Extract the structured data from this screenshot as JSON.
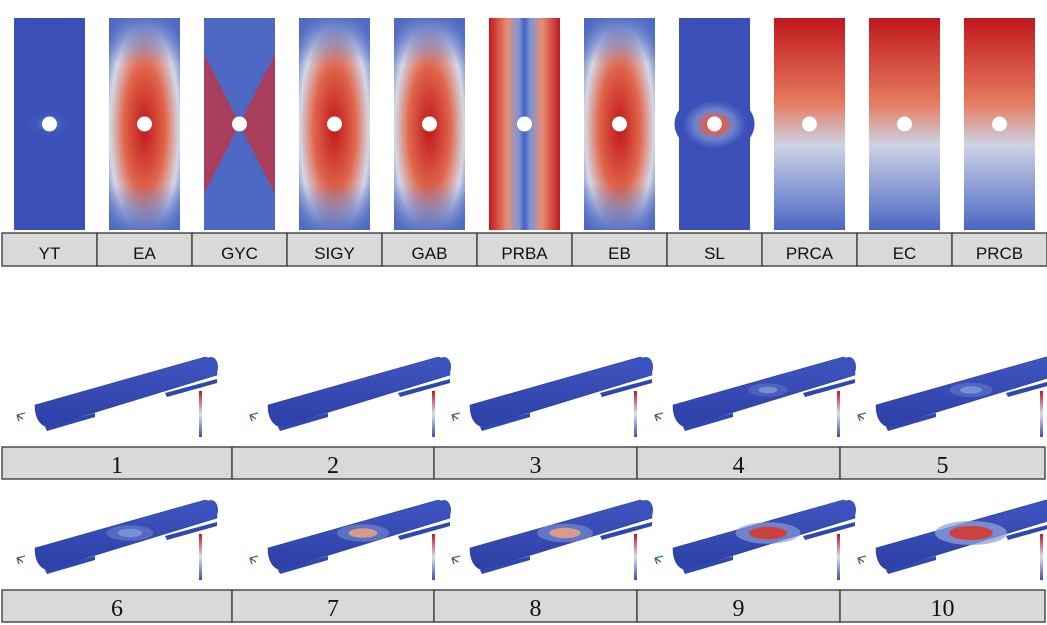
{
  "colors": {
    "low": "#3a4fb8",
    "mid": "#d8dce8",
    "high": "#c1171c",
    "cell_fill": "#d9d9d9",
    "cell_border": "#404040",
    "hole": "#ffffff"
  },
  "plates": [
    {
      "label": "YT",
      "pattern": "uniform-low"
    },
    {
      "label": "EA",
      "pattern": "x-high-center"
    },
    {
      "label": "GYC",
      "pattern": "x-high-center-low-edges"
    },
    {
      "label": "SIGY",
      "pattern": "x-high-center"
    },
    {
      "label": "GAB",
      "pattern": "x-high-center"
    },
    {
      "label": "PRBA",
      "pattern": "vertical-band-low"
    },
    {
      "label": "EB",
      "pattern": "x-high-center"
    },
    {
      "label": "SL",
      "pattern": "center-high-ring-low"
    },
    {
      "label": "PRCA",
      "pattern": "top-high-bottom-low"
    },
    {
      "label": "EC",
      "pattern": "top-high-bottom-low"
    },
    {
      "label": "PRCB",
      "pattern": "top-high-bottom-low"
    }
  ],
  "shells_row1": [
    {
      "label": "1",
      "hotspot": 0.0
    },
    {
      "label": "2",
      "hotspot": 0.0
    },
    {
      "label": "3",
      "hotspot": 0.0
    },
    {
      "label": "4",
      "hotspot": 0.1
    },
    {
      "label": "5",
      "hotspot": 0.2
    }
  ],
  "shells_row2": [
    {
      "label": "6",
      "hotspot": 0.3
    },
    {
      "label": "7",
      "hotspot": 0.45
    },
    {
      "label": "8",
      "hotspot": 0.55
    },
    {
      "label": "9",
      "hotspot": 0.8
    },
    {
      "label": "10",
      "hotspot": 1.0
    }
  ]
}
